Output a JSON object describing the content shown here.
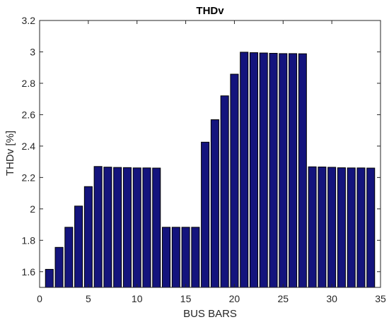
{
  "chart_data": {
    "type": "bar",
    "title": "THDv",
    "xlabel": "BUS BARS",
    "ylabel": "THDv [%]",
    "xlim": [
      0,
      35
    ],
    "ylim": [
      1.5,
      3.2
    ],
    "xticks": [
      "0",
      "5",
      "10",
      "15",
      "20",
      "25",
      "30",
      "35"
    ],
    "yticks": [
      "1.6",
      "1.8",
      "2",
      "2.2",
      "2.4",
      "2.6",
      "2.8",
      "3",
      "3.2"
    ],
    "grid": false,
    "x": [
      1,
      2,
      3,
      4,
      5,
      6,
      7,
      8,
      9,
      10,
      11,
      12,
      13,
      14,
      15,
      16,
      17,
      18,
      19,
      20,
      21,
      22,
      23,
      24,
      25,
      26,
      27,
      28,
      29,
      30,
      31,
      32,
      33,
      34
    ],
    "values": [
      1.615,
      1.755,
      1.883,
      2.018,
      2.142,
      2.27,
      2.266,
      2.264,
      2.263,
      2.261,
      2.261,
      2.26,
      1.883,
      1.883,
      1.883,
      1.883,
      2.425,
      2.568,
      2.72,
      2.858,
      2.998,
      2.995,
      2.993,
      2.991,
      2.989,
      2.989,
      2.988,
      2.268,
      2.267,
      2.265,
      2.262,
      2.261,
      2.261,
      2.26
    ],
    "colors": {
      "bar": "#14147d",
      "edge": "#000000",
      "axis": "#262626"
    }
  }
}
